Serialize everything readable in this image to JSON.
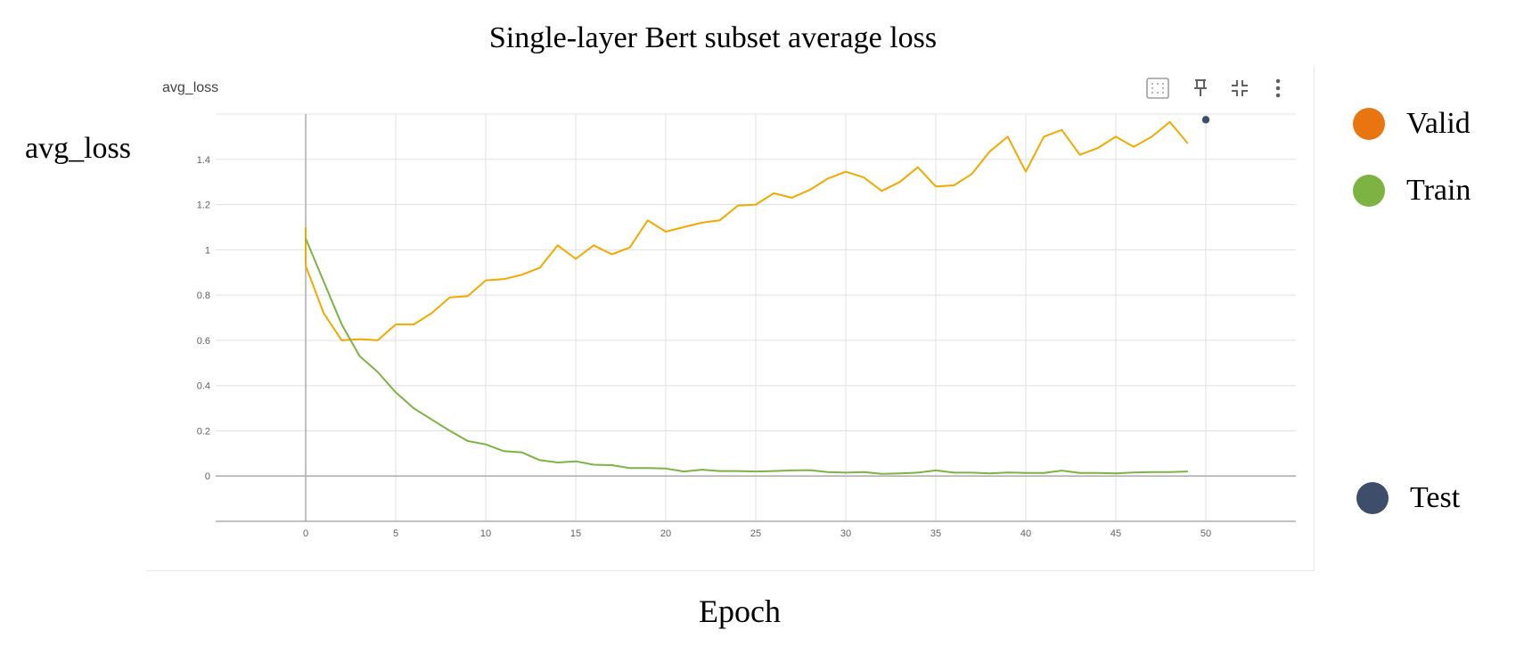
{
  "figure": {
    "title": "Single-layer Bert subset average loss",
    "ylabel": "avg_loss",
    "xlabel": "Epoch"
  },
  "card": {
    "title": "avg_loss",
    "toolbar": {
      "fit_icon": "fit-domain-icon",
      "pin_icon": "pin-icon",
      "collapse_icon": "collapse-icon",
      "more_icon": "more-vert-icon"
    }
  },
  "legend": [
    {
      "label": "Valid",
      "color": "#E8750F"
    },
    {
      "label": "Train",
      "color": "#7CB342"
    },
    {
      "label": "Test",
      "color": "#3D4E6B"
    }
  ],
  "chart_data": {
    "type": "line",
    "xlim": [
      -5,
      55
    ],
    "ylim": [
      -0.2,
      1.6
    ],
    "xticks": [
      0,
      5,
      10,
      15,
      20,
      25,
      30,
      35,
      40,
      45,
      50
    ],
    "yticks": [
      0,
      0.2,
      0.4,
      0.6,
      0.8,
      1,
      1.2,
      1.4
    ],
    "ytick_labels": [
      "0",
      "0.2",
      "0.4",
      "0.6",
      "0.8",
      "1",
      "1.2",
      "1.4"
    ],
    "grid": true,
    "series": [
      {
        "name": "Valid",
        "color": "#F2A900",
        "x": [
          0,
          1,
          2,
          3,
          4,
          5,
          6,
          7,
          8,
          9,
          10,
          11,
          12,
          13,
          14,
          15,
          16,
          17,
          18,
          19,
          20,
          21,
          22,
          23,
          24,
          25,
          26,
          27,
          28,
          29,
          30,
          31,
          32,
          33,
          34,
          35,
          36,
          37,
          38,
          39,
          40,
          41,
          42,
          43,
          44,
          45,
          46,
          47,
          48,
          49
        ],
        "y": [
          0.93,
          0.72,
          0.6,
          0.605,
          0.6,
          0.67,
          0.67,
          0.72,
          0.79,
          0.795,
          0.865,
          0.87,
          0.89,
          0.92,
          1.02,
          0.96,
          1.02,
          0.98,
          1.01,
          1.13,
          1.08,
          1.1,
          1.12,
          1.13,
          1.195,
          1.2,
          1.25,
          1.23,
          1.265,
          1.315,
          1.345,
          1.32,
          1.26,
          1.3,
          1.365,
          1.28,
          1.285,
          1.335,
          1.435,
          1.5,
          1.345,
          1.5,
          1.53,
          1.42,
          1.45,
          1.5,
          1.455,
          1.5,
          1.565,
          1.47
        ],
        "start_spike": 1.1
      },
      {
        "name": "Train",
        "color": "#7CB342",
        "x": [
          0,
          1,
          2,
          3,
          4,
          5,
          6,
          7,
          8,
          9,
          10,
          11,
          12,
          13,
          14,
          15,
          16,
          17,
          18,
          19,
          20,
          21,
          22,
          23,
          24,
          25,
          26,
          27,
          28,
          29,
          30,
          31,
          32,
          33,
          34,
          35,
          36,
          37,
          38,
          39,
          40,
          41,
          42,
          43,
          44,
          45,
          46,
          47,
          48,
          49
        ],
        "y": [
          1.05,
          0.86,
          0.67,
          0.53,
          0.46,
          0.37,
          0.3,
          0.25,
          0.2,
          0.155,
          0.14,
          0.11,
          0.105,
          0.07,
          0.06,
          0.065,
          0.05,
          0.048,
          0.035,
          0.035,
          0.033,
          0.02,
          0.028,
          0.022,
          0.022,
          0.02,
          0.022,
          0.025,
          0.026,
          0.018,
          0.015,
          0.018,
          0.01,
          0.012,
          0.015,
          0.025,
          0.015,
          0.015,
          0.012,
          0.016,
          0.014,
          0.014,
          0.024,
          0.014,
          0.014,
          0.012,
          0.016,
          0.018,
          0.018,
          0.02
        ]
      },
      {
        "name": "Test",
        "color": "#3D4E6B",
        "x": [
          50
        ],
        "y": [
          1.575
        ]
      }
    ]
  }
}
